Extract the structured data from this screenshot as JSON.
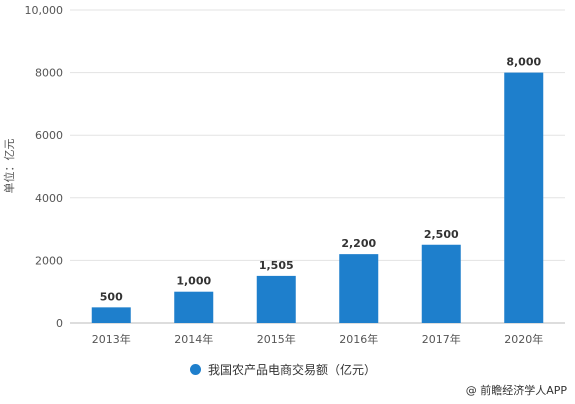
{
  "chart_data": {
    "type": "bar",
    "title": "",
    "xlabel": "",
    "ylabel": "单位：亿元",
    "ylim": [
      0,
      10000
    ],
    "yticks": [
      "0",
      "2000",
      "4000",
      "6000",
      "8000",
      "10,000"
    ],
    "categories": [
      "2013年",
      "2014年",
      "2015年",
      "2016年",
      "2017年",
      "2020年"
    ],
    "series": [
      {
        "name": "我国农产品电商交易额（亿元）",
        "values": [
          500,
          1000,
          1505,
          2200,
          2500,
          8000
        ],
        "labels": [
          "500",
          "1,000",
          "1,505",
          "2,200",
          "2,500",
          "8,000"
        ],
        "color": "#1e7fcc"
      }
    ],
    "grid": true,
    "legend_position": "bottom"
  },
  "source": "@ 前瞻经济学人APP"
}
